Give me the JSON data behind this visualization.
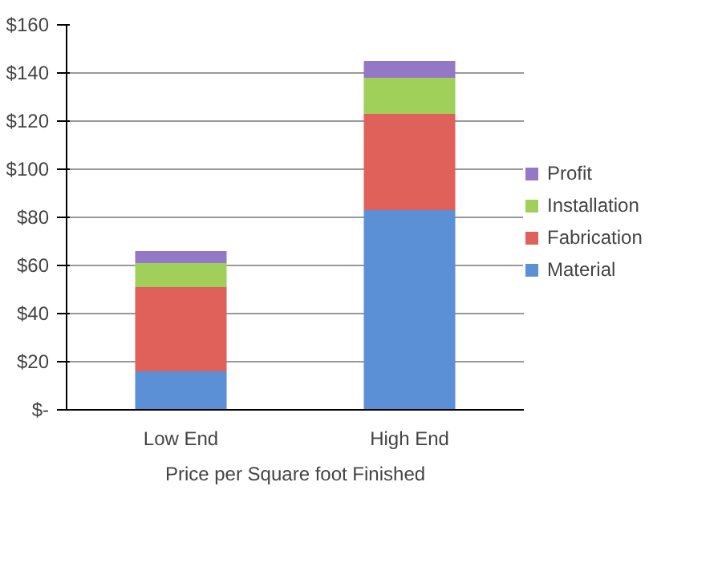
{
  "chart_data": {
    "type": "bar",
    "stacked": true,
    "xlabel": "Price per Square foot Finished",
    "categories": [
      "Low End",
      "High End"
    ],
    "series": [
      {
        "name": "Material",
        "color": "#5b8fd6",
        "values": [
          16,
          83
        ]
      },
      {
        "name": "Fabrication",
        "color": "#e0605a",
        "values": [
          35,
          40
        ]
      },
      {
        "name": "Installation",
        "color": "#a0cf5a",
        "values": [
          10,
          15
        ]
      },
      {
        "name": "Profit",
        "color": "#9478c8",
        "values": [
          5,
          7
        ]
      }
    ],
    "ylim": [
      0,
      160
    ],
    "yticks": [
      {
        "value": 0,
        "label": "$-"
      },
      {
        "value": 20,
        "label": "$20"
      },
      {
        "value": 40,
        "label": "$40"
      },
      {
        "value": 60,
        "label": "$60"
      },
      {
        "value": 80,
        "label": "$80"
      },
      {
        "value": 100,
        "label": "$100"
      },
      {
        "value": 120,
        "label": "$120"
      },
      {
        "value": 140,
        "label": "$140"
      },
      {
        "value": 160,
        "label": "$160"
      }
    ],
    "grid": "y",
    "legend": "right"
  }
}
